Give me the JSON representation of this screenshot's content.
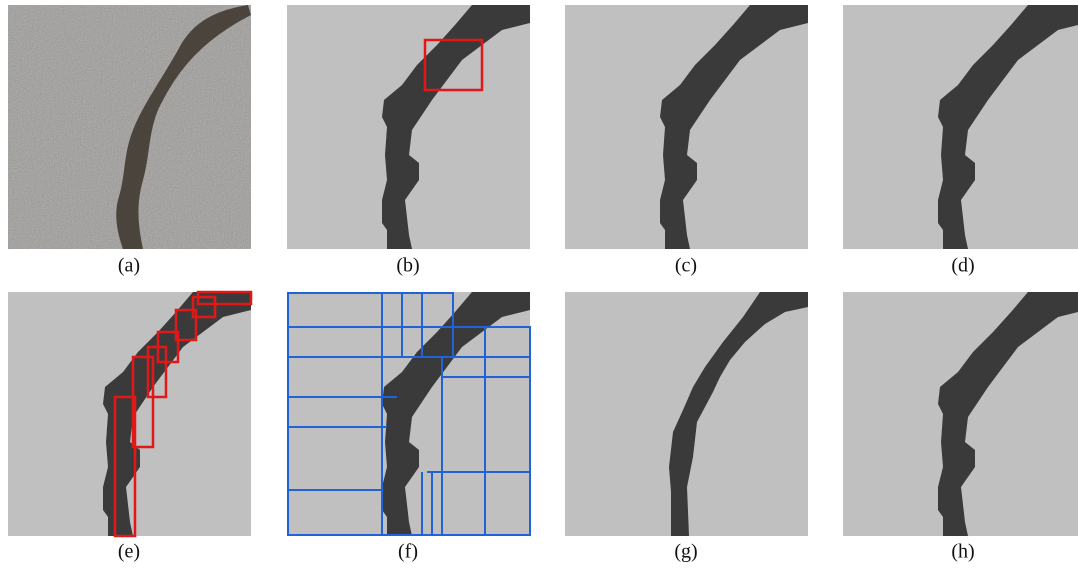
{
  "panels": [
    {
      "label": "(a)"
    },
    {
      "label": "(b)"
    },
    {
      "label": "(c)"
    },
    {
      "label": "(d)"
    },
    {
      "label": "(e)"
    },
    {
      "label": "(f)"
    },
    {
      "label": "(g)"
    },
    {
      "label": "(h)"
    }
  ]
}
